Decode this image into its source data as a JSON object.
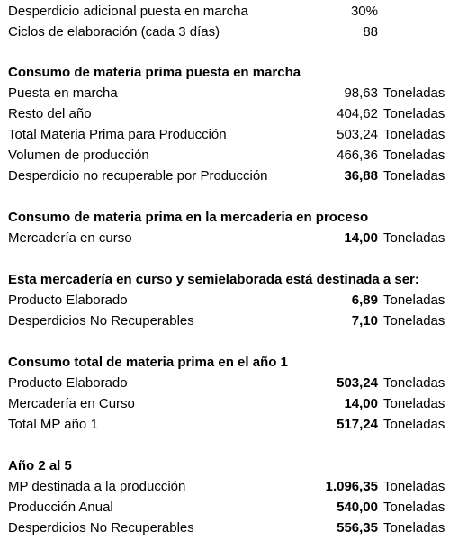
{
  "sheet": {
    "rows": [
      {
        "label": "Desperdicio adicional puesta en marcha",
        "value": "30%",
        "unit": ""
      },
      {
        "label": "Ciclos de elaboración (cada 3 días)",
        "value": "88",
        "unit": ""
      },
      {
        "label": "Consumo de materia prima puesta en marcha"
      },
      {
        "label": "Puesta en marcha",
        "value": "98,63",
        "unit": "Toneladas"
      },
      {
        "label": "Resto del año",
        "value": "404,62",
        "unit": "Toneladas"
      },
      {
        "label": "Total Materia Prima para Producción",
        "value": "503,24",
        "unit": "Toneladas"
      },
      {
        "label": "Volumen de producción",
        "value": "466,36",
        "unit": "Toneladas"
      },
      {
        "label": "Desperdicio no recuperable por Producción",
        "value": "36,88",
        "unit": "Toneladas"
      },
      {
        "label": "Consumo de materia prima en la mercaderia en proceso"
      },
      {
        "label": "Mercadería en curso",
        "value": "14,00",
        "unit": "Toneladas"
      },
      {
        "label": "Esta mercadería en curso y semielaborada está destinada a ser:"
      },
      {
        "label": "Producto Elaborado",
        "value": "6,89",
        "unit": "Toneladas"
      },
      {
        "label": "Desperdicios No Recuperables",
        "value": "7,10",
        "unit": "Toneladas"
      },
      {
        "label": "Consumo total de materia prima en el año 1"
      },
      {
        "label": "Producto Elaborado",
        "value": "503,24",
        "unit": "Toneladas"
      },
      {
        "label": "Mercadería en Curso",
        "value": "14,00",
        "unit": "Toneladas"
      },
      {
        "label": "Total MP año 1",
        "value": "517,24",
        "unit": "Toneladas"
      },
      {
        "label": "Año 2 al 5"
      },
      {
        "label": "MP destinada a la producción",
        "value": "1.096,35",
        "unit": "Toneladas"
      },
      {
        "label": "Producción Anual",
        "value": "540,00",
        "unit": "Toneladas"
      },
      {
        "label": "Desperdicios No Recuperables",
        "value": "556,35",
        "unit": "Toneladas"
      }
    ]
  }
}
